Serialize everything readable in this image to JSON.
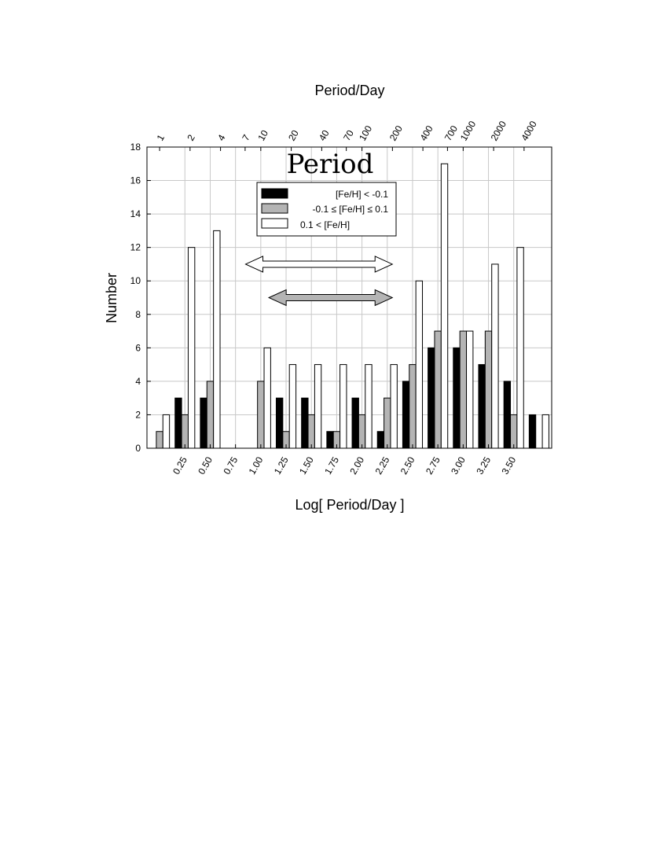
{
  "chart_data": {
    "type": "bar",
    "title": "Period",
    "xlabel": "Log[ Period/Day ]",
    "ylabel": "Number",
    "top_axis_label": "Period/Day",
    "x_range": [
      -0.125,
      3.875
    ],
    "ylim": [
      0,
      18
    ],
    "y_ticks": [
      0,
      2,
      4,
      6,
      8,
      10,
      12,
      14,
      16,
      18
    ],
    "x_tick_values": [
      0.25,
      0.5,
      0.75,
      1.0,
      1.25,
      1.5,
      1.75,
      2.0,
      2.25,
      2.5,
      2.75,
      3.0,
      3.25,
      3.5
    ],
    "x_tick_labels": [
      "0.25",
      "0.50",
      "0.75",
      "1.00",
      "1.25",
      "1.50",
      "1.75",
      "2.00",
      "2.25",
      "2.50",
      "2.75",
      "3.00",
      "3.25",
      "3.50"
    ],
    "top_ticks": [
      {
        "label": "1",
        "period": 1
      },
      {
        "label": "2",
        "period": 2
      },
      {
        "label": "4",
        "period": 4
      },
      {
        "label": "7",
        "period": 7
      },
      {
        "label": "10",
        "period": 10
      },
      {
        "label": "20",
        "period": 20
      },
      {
        "label": "40",
        "period": 40
      },
      {
        "label": "70",
        "period": 70
      },
      {
        "label": "100",
        "period": 100
      },
      {
        "label": "200",
        "period": 200
      },
      {
        "label": "400",
        "period": 400
      },
      {
        "label": "700",
        "period": 700
      },
      {
        "label": "1000",
        "period": 1000
      },
      {
        "label": "2000",
        "period": 2000
      },
      {
        "label": "4000",
        "period": 4000
      }
    ],
    "grid": true,
    "bin_centers": [
      0.0,
      0.25,
      0.5,
      0.75,
      1.0,
      1.25,
      1.5,
      1.75,
      2.0,
      2.25,
      2.5,
      2.75,
      3.0,
      3.25,
      3.5,
      3.75
    ],
    "series": [
      {
        "name": "[Fe/H] < -0.1",
        "color": "#000000",
        "values": [
          0,
          3,
          3,
          0,
          0,
          3,
          3,
          1,
          3,
          1,
          4,
          6,
          6,
          5,
          4,
          2
        ]
      },
      {
        "name": "-0.1 ≤ [Fe/H] ≤ 0.1",
        "color": "#b4b4b4",
        "values": [
          1,
          2,
          4,
          0,
          4,
          1,
          2,
          1,
          2,
          3,
          5,
          7,
          7,
          7,
          2,
          0
        ]
      },
      {
        "name": "0.1 < [Fe/H]",
        "color": "#ffffff",
        "values": [
          2,
          12,
          13,
          0,
          6,
          5,
          5,
          5,
          5,
          5,
          10,
          17,
          7,
          11,
          12,
          2
        ]
      }
    ],
    "legend_placement": "top-center",
    "annotations": [
      {
        "type": "double-arrow",
        "fill": "#ffffff",
        "x_from": 0.85,
        "x_to": 2.3,
        "y": 11
      },
      {
        "type": "double-arrow",
        "fill": "#b4b4b4",
        "x_from": 1.08,
        "x_to": 2.3,
        "y": 9
      }
    ]
  }
}
